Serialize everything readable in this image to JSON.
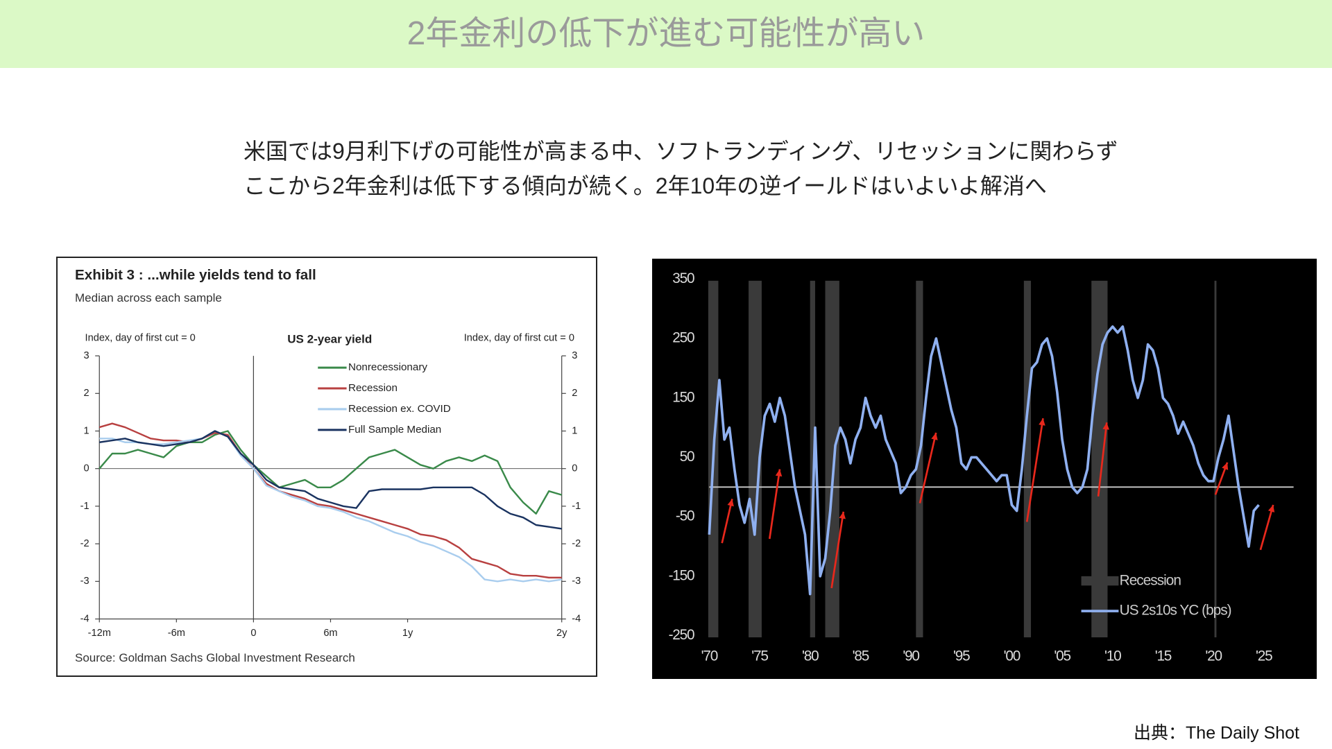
{
  "header": {
    "title": "2年金利の低下が進む可能性が高い"
  },
  "body": {
    "lines": [
      "米国では9月利下げの可能性が高まる中、ソフトランディング、リセッションに関わらず",
      "ここから2年金利は低下する傾向が続く。2年10年の逆イールドはいよいよ解消へ"
    ]
  },
  "source": "出典：The Daily Shot",
  "chart_data": [
    {
      "type": "line",
      "title": "Exhibit 3 : ...while yields tend to fall",
      "subtitle": "Median across each sample",
      "ylabel": "Index, day of first cut = 0",
      "y2label": "Index, day of first cut = 0",
      "center_label": "US 2-year yield",
      "source": "Source: Goldman Sachs Global Investment Research",
      "x": [
        -12,
        -11,
        -10,
        -9,
        -8,
        -7,
        -6,
        -5,
        -4,
        -3,
        -2,
        -1,
        0,
        1,
        2,
        3,
        4,
        5,
        6,
        7,
        8,
        9,
        10,
        11,
        12,
        13,
        14,
        15,
        16,
        17,
        18,
        19,
        20,
        21,
        22,
        23,
        24
      ],
      "xlim": [
        -12,
        24
      ],
      "xticks": [
        {
          "value": -12,
          "label": "-12m"
        },
        {
          "value": -6,
          "label": "-6m"
        },
        0,
        {
          "value": 6,
          "label": "6m"
        },
        {
          "value": 12,
          "label": "1y"
        },
        {
          "value": 24,
          "label": "2y"
        }
      ],
      "ylim": [
        -4,
        3
      ],
      "yticks": [
        -4,
        -3,
        -2,
        -1,
        0,
        1,
        2,
        3
      ],
      "y2lim": [
        -4,
        3
      ],
      "y2ticks": [
        -4,
        -3,
        -2,
        -1,
        0,
        1,
        2,
        3
      ],
      "series": [
        {
          "name": "Nonrecessionary",
          "color": "#3a8a4a",
          "values": [
            0.0,
            0.4,
            0.4,
            0.5,
            0.4,
            0.3,
            0.6,
            0.7,
            0.7,
            0.9,
            1.0,
            0.5,
            0.1,
            -0.2,
            -0.5,
            -0.4,
            -0.3,
            -0.5,
            -0.5,
            -0.3,
            0.0,
            0.3,
            0.4,
            0.5,
            0.3,
            0.1,
            0.0,
            0.2,
            0.3,
            0.2,
            0.35,
            0.2,
            -0.5,
            -0.9,
            -1.2,
            -0.6,
            -0.7
          ]
        },
        {
          "name": "Recession",
          "color": "#b84040",
          "values": [
            1.1,
            1.2,
            1.1,
            0.95,
            0.8,
            0.75,
            0.75,
            0.7,
            0.8,
            0.95,
            0.9,
            0.4,
            0.0,
            -0.4,
            -0.6,
            -0.7,
            -0.8,
            -0.95,
            -1.0,
            -1.1,
            -1.2,
            -1.3,
            -1.4,
            -1.5,
            -1.6,
            -1.75,
            -1.8,
            -1.9,
            -2.1,
            -2.4,
            -2.5,
            -2.6,
            -2.8,
            -2.85,
            -2.85,
            -2.9,
            -2.9
          ]
        },
        {
          "name": "Recession ex. COVID",
          "color": "#a9cdee",
          "values": [
            0.8,
            0.8,
            0.7,
            0.7,
            0.65,
            0.65,
            0.7,
            0.75,
            0.8,
            1.0,
            0.85,
            0.35,
            0.0,
            -0.45,
            -0.6,
            -0.75,
            -0.85,
            -1.0,
            -1.05,
            -1.15,
            -1.3,
            -1.4,
            -1.55,
            -1.7,
            -1.8,
            -1.95,
            -2.05,
            -2.2,
            -2.35,
            -2.6,
            -2.95,
            -3.0,
            -2.95,
            -3.0,
            -2.95,
            -3.0,
            -2.95
          ]
        },
        {
          "name": "Full Sample Median",
          "color": "#1a3360",
          "values": [
            0.7,
            0.75,
            0.8,
            0.7,
            0.65,
            0.6,
            0.65,
            0.7,
            0.8,
            1.0,
            0.85,
            0.4,
            0.1,
            -0.3,
            -0.5,
            -0.55,
            -0.6,
            -0.8,
            -0.9,
            -1.0,
            -1.05,
            -0.6,
            -0.55,
            -0.55,
            -0.55,
            -0.55,
            -0.5,
            -0.5,
            -0.5,
            -0.5,
            -0.7,
            -1.0,
            -1.2,
            -1.3,
            -1.5,
            -1.55,
            -1.6
          ]
        }
      ]
    },
    {
      "type": "line",
      "x": [
        1970,
        1970.5,
        1971,
        1971.5,
        1972,
        1972.5,
        1973,
        1973.5,
        1974,
        1974.5,
        1975,
        1975.5,
        1976,
        1976.5,
        1977,
        1977.5,
        1978,
        1978.5,
        1979,
        1979.5,
        1980,
        1980.5,
        1981,
        1981.5,
        1982,
        1982.5,
        1983,
        1983.5,
        1984,
        1984.5,
        1985,
        1985.5,
        1986,
        1986.5,
        1987,
        1987.5,
        1988,
        1988.5,
        1989,
        1989.5,
        1990,
        1990.5,
        1991,
        1991.5,
        1992,
        1992.5,
        1993,
        1993.5,
        1994,
        1994.5,
        1995,
        1995.5,
        1996,
        1996.5,
        1997,
        1997.5,
        1998,
        1998.5,
        1999,
        1999.5,
        2000,
        2000.5,
        2001,
        2001.5,
        2002,
        2002.5,
        2003,
        2003.5,
        2004,
        2004.5,
        2005,
        2005.5,
        2006,
        2006.5,
        2007,
        2007.5,
        2008,
        2008.5,
        2009,
        2009.5,
        2010,
        2010.5,
        2011,
        2011.5,
        2012,
        2012.5,
        2013,
        2013.5,
        2014,
        2014.5,
        2015,
        2015.5,
        2016,
        2016.5,
        2017,
        2017.5,
        2018,
        2018.5,
        2019,
        2019.5,
        2020,
        2020.5,
        2021,
        2021.5,
        2022,
        2022.5,
        2023,
        2023.5,
        2024,
        2024.5
      ],
      "xlim": [
        1968.5,
        2026.5
      ],
      "xticks": [
        {
          "value": 1970,
          "label": "'70"
        },
        {
          "value": 1975,
          "label": "'75"
        },
        {
          "value": 1980,
          "label": "'80"
        },
        {
          "value": 1985,
          "label": "'85"
        },
        {
          "value": 1990,
          "label": "'90"
        },
        {
          "value": 1995,
          "label": "'95"
        },
        {
          "value": 2000,
          "label": "'00"
        },
        {
          "value": 2005,
          "label": "'05"
        },
        {
          "value": 2010,
          "label": "'10"
        },
        {
          "value": 2015,
          "label": "'15"
        },
        {
          "value": 2020,
          "label": "'20"
        },
        {
          "value": 2025,
          "label": "'25"
        }
      ],
      "ylim": [
        -250,
        350
      ],
      "yticks": [
        -250,
        -150,
        -50,
        50,
        150,
        250,
        350
      ],
      "recession_label": "Recession",
      "recessions": [
        [
          1969.9,
          1970.9
        ],
        [
          1973.9,
          1975.2
        ],
        [
          1980.0,
          1980.5
        ],
        [
          1981.5,
          1982.9
        ],
        [
          1990.5,
          1991.2
        ],
        [
          2001.2,
          2001.9
        ],
        [
          2007.9,
          2009.5
        ],
        [
          2020.1,
          2020.3
        ]
      ],
      "series": [
        {
          "name": "US 2s10s YC (bps)",
          "color": "#8fb0f0",
          "values": [
            -80,
            80,
            180,
            80,
            100,
            30,
            -30,
            -60,
            -20,
            -80,
            50,
            120,
            140,
            110,
            150,
            120,
            60,
            0,
            -40,
            -80,
            -180,
            100,
            -150,
            -120,
            -40,
            70,
            100,
            80,
            40,
            80,
            100,
            150,
            120,
            100,
            120,
            80,
            60,
            40,
            -10,
            0,
            20,
            30,
            70,
            150,
            220,
            250,
            210,
            170,
            130,
            100,
            40,
            30,
            50,
            50,
            40,
            30,
            20,
            10,
            20,
            20,
            -30,
            -40,
            30,
            120,
            200,
            210,
            240,
            250,
            220,
            160,
            80,
            30,
            0,
            -10,
            0,
            30,
            120,
            190,
            240,
            260,
            270,
            260,
            270,
            230,
            180,
            150,
            180,
            240,
            230,
            200,
            150,
            140,
            120,
            90,
            110,
            90,
            70,
            40,
            20,
            10,
            10,
            50,
            80,
            120,
            60,
            0,
            -50,
            -100,
            -40,
            -30
          ]
        }
      ]
    }
  ]
}
